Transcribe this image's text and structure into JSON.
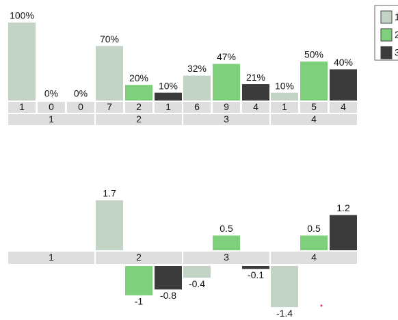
{
  "chart_data": [
    {
      "type": "bar",
      "categories": [
        "1",
        "2",
        "3",
        "4"
      ],
      "series": [
        {
          "name": "1",
          "color": "#c3d4c6",
          "values": [
            100,
            70,
            32,
            10
          ],
          "value_labels": [
            "100%",
            "70%",
            "32%",
            "10%"
          ],
          "counts": [
            1,
            7,
            6,
            1
          ]
        },
        {
          "name": "2",
          "color": "#7fd07c",
          "values": [
            0,
            20,
            47,
            50
          ],
          "value_labels": [
            "0%",
            "20%",
            "47%",
            "50%"
          ],
          "counts": [
            0,
            2,
            9,
            5
          ]
        },
        {
          "name": "3",
          "color": "#3b3b3b",
          "values": [
            0,
            10,
            21,
            40
          ],
          "value_labels": [
            "0%",
            "10%",
            "21%",
            "40%"
          ],
          "counts": [
            0,
            1,
            4,
            4
          ]
        }
      ]
    },
    {
      "type": "bar",
      "categories": [
        "1",
        "2",
        "3",
        "4"
      ],
      "series": [
        {
          "color": "#c3d4c6",
          "values": [
            null,
            1.7,
            -0.4,
            -1.4
          ]
        },
        {
          "color": "#7fd07c",
          "values": [
            null,
            -1,
            0.5,
            0.5
          ]
        },
        {
          "color": "#3b3b3b",
          "values": [
            null,
            -0.8,
            -0.1,
            1.2
          ]
        }
      ]
    }
  ]
}
